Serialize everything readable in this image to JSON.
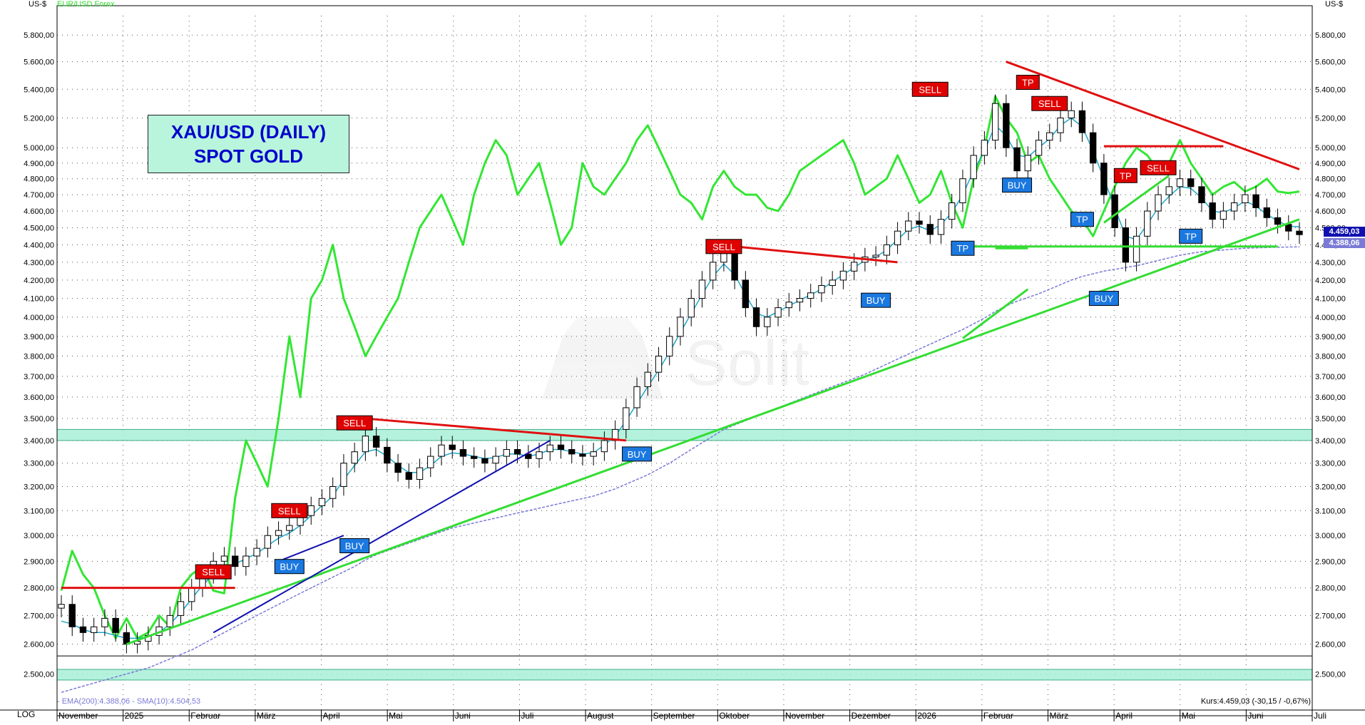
{
  "header": {
    "currency_label_left": "US-$",
    "currency_label_right": "US-$",
    "overlay_legend": "EUR/USD Forex"
  },
  "title_box": {
    "line1": "XAU/USD (DAILY)",
    "line2": "SPOT GOLD"
  },
  "footer": {
    "scale_mode": "LOG",
    "indicator_legend": "- EMA(200):4.388,06 - SMA(10):4.504,53",
    "quote_text": "Kurs:4.459,03 (-30,15 / -0,67%)"
  },
  "price_tags": {
    "last": "4.459,03",
    "ema": "4.388,06"
  },
  "colors": {
    "price_candles": "#000000",
    "overlay_line": "#33e633",
    "sma_line": "#1fa8c8",
    "ema_line": "#7a7ad6",
    "support_line": "#33dd33",
    "resistance_line": "#e01010",
    "blue_trend": "#1010b0",
    "zone_fill": "#a8f0d8",
    "sell_box": "#e00000",
    "buy_box": "#1a78e0",
    "title_fill": "#b8f5dc",
    "title_text": "#0000cc"
  },
  "chart_data": {
    "type": "line",
    "title": "XAU/USD (DAILY) SPOT GOLD",
    "y_scale": "log",
    "ylim": [
      2420,
      5950
    ],
    "y_ticks": [
      2500,
      2600,
      2700,
      2800,
      2900,
      3000,
      3100,
      3200,
      3300,
      3400,
      3500,
      3600,
      3700,
      3800,
      3900,
      4000,
      4100,
      4200,
      4300,
      4400,
      4500,
      4600,
      4700,
      4800,
      4900,
      5000,
      5200,
      5400,
      5600,
      5800
    ],
    "y_tick_labels": [
      "2.500,00",
      "2.600,00",
      "2.700,00",
      "2.800,00",
      "2.900,00",
      "3.000,00",
      "3.100,00",
      "3.200,00",
      "3.300,00",
      "3.400,00",
      "3.500,00",
      "3.600,00",
      "3.700,00",
      "3.800,00",
      "3.900,00",
      "4.000,00",
      "4.100,00",
      "4.200,00",
      "4.300,00",
      "4.400,00",
      "4.500,00",
      "4.600,00",
      "4.700,00",
      "4.800,00",
      "4.900,00",
      "5.000,00",
      "5.200,00",
      "5.400,00",
      "5.600,00",
      "5.800,00"
    ],
    "x_labels": [
      "November",
      "2025",
      "Februar",
      "März",
      "April",
      "Mai",
      "Juni",
      "Juli",
      "August",
      "September",
      "Oktober",
      "November",
      "Dezember",
      "2026",
      "Februar",
      "März",
      "April",
      "Mai",
      "Juni",
      "Juli"
    ],
    "series": [
      {
        "name": "XAU/USD",
        "style": "candles",
        "values": [
          2740,
          2660,
          2640,
          2660,
          2690,
          2640,
          2600,
          2610,
          2630,
          2660,
          2700,
          2750,
          2800,
          2850,
          2900,
          2920,
          2880,
          2920,
          2950,
          3000,
          3020,
          3040,
          3080,
          3120,
          3150,
          3200,
          3300,
          3350,
          3420,
          3370,
          3300,
          3260,
          3230,
          3280,
          3330,
          3380,
          3360,
          3330,
          3320,
          3300,
          3330,
          3360,
          3340,
          3320,
          3350,
          3380,
          3360,
          3340,
          3330,
          3350,
          3400,
          3450,
          3550,
          3650,
          3720,
          3800,
          3900,
          4000,
          4100,
          4200,
          4300,
          4350,
          4200,
          4050,
          3950,
          4000,
          4050,
          4080,
          4100,
          4130,
          4170,
          4200,
          4250,
          4300,
          4330,
          4340,
          4400,
          4480,
          4540,
          4520,
          4460,
          4550,
          4650,
          4800,
          4950,
          5050,
          5300,
          5000,
          4850,
          4950,
          5050,
          5100,
          5200,
          5250,
          5100,
          4900,
          4700,
          4500,
          4300,
          4450,
          4600,
          4700,
          4750,
          4800,
          4750,
          4650,
          4550,
          4600,
          4650,
          4700,
          4620,
          4560,
          4520,
          4480,
          4459
        ]
      },
      {
        "name": "EUR/USD Forex",
        "style": "line",
        "values": [
          2790,
          2940,
          2850,
          2800,
          2700,
          2620,
          2690,
          2620,
          2640,
          2700,
          2660,
          2800,
          2850,
          2880,
          2790,
          2780,
          3150,
          3400,
          3300,
          3200,
          3500,
          3900,
          3600,
          4100,
          4200,
          4400,
          4100,
          3950,
          3800,
          3900,
          4000,
          4100,
          4300,
          4500,
          4600,
          4700,
          4550,
          4400,
          4700,
          4900,
          5050,
          4950,
          4700,
          4800,
          4900,
          4650,
          4400,
          4500,
          4900,
          4750,
          4700,
          4800,
          4900,
          5050,
          5150,
          5000,
          4850,
          4700,
          4650,
          4550,
          4750,
          4850,
          4750,
          4700,
          4700,
          4620,
          4600,
          4700,
          4850,
          4900,
          4950,
          5000,
          5050,
          4900,
          4700,
          4750,
          4800,
          4950,
          4800,
          4650,
          4700,
          4850,
          4650,
          4500,
          4800,
          5000,
          5350,
          5200,
          5100,
          4900,
          4950,
          4800,
          4700,
          4600,
          4550,
          4450,
          4600,
          4750,
          4900,
          5000,
          4950,
          4850,
          4900,
          5050,
          4900,
          4800,
          4700,
          4750,
          4780,
          4720,
          4750,
          4800,
          4720,
          4710,
          4720
        ]
      },
      {
        "name": "SMA(10)",
        "style": "line",
        "values": [
          2680,
          2670,
          2650,
          2640,
          2640,
          2630,
          2620,
          2620,
          2625,
          2640,
          2670,
          2710,
          2760,
          2810,
          2850,
          2880,
          2890,
          2910,
          2930,
          2960,
          2990,
          3010,
          3040,
          3080,
          3120,
          3160,
          3230,
          3290,
          3350,
          3360,
          3330,
          3290,
          3260,
          3260,
          3290,
          3330,
          3345,
          3340,
          3330,
          3320,
          3325,
          3340,
          3340,
          3330,
          3340,
          3360,
          3360,
          3350,
          3340,
          3345,
          3380,
          3420,
          3490,
          3570,
          3650,
          3730,
          3820,
          3920,
          4020,
          4120,
          4220,
          4290,
          4230,
          4120,
          4020,
          4000,
          4030,
          4060,
          4090,
          4120,
          4150,
          4190,
          4230,
          4270,
          4310,
          4330,
          4370,
          4430,
          4490,
          4510,
          4480,
          4520,
          4590,
          4700,
          4850,
          4980,
          5150,
          5080,
          4950,
          4940,
          5000,
          5060,
          5150,
          5200,
          5140,
          4980,
          4800,
          4620,
          4450,
          4430,
          4520,
          4620,
          4690,
          4750,
          4740,
          4680,
          4600,
          4590,
          4620,
          4660,
          4630,
          4580,
          4540,
          4510,
          4505
        ]
      },
      {
        "name": "EMA(200)",
        "style": "dashed",
        "values": [
          2440,
          2450,
          2460,
          2470,
          2480,
          2490,
          2500,
          2510,
          2520,
          2535,
          2550,
          2565,
          2580,
          2600,
          2620,
          2640,
          2660,
          2680,
          2700,
          2720,
          2740,
          2760,
          2780,
          2800,
          2820,
          2840,
          2860,
          2880,
          2905,
          2925,
          2940,
          2955,
          2970,
          2985,
          3000,
          3015,
          3030,
          3040,
          3050,
          3060,
          3070,
          3080,
          3090,
          3100,
          3110,
          3120,
          3130,
          3140,
          3150,
          3160,
          3175,
          3190,
          3210,
          3230,
          3250,
          3275,
          3300,
          3330,
          3360,
          3390,
          3420,
          3450,
          3470,
          3490,
          3510,
          3530,
          3550,
          3570,
          3590,
          3610,
          3630,
          3650,
          3670,
          3690,
          3710,
          3735,
          3760,
          3785,
          3810,
          3835,
          3860,
          3885,
          3910,
          3935,
          3965,
          3995,
          4030,
          4060,
          4085,
          4105,
          4125,
          4150,
          4175,
          4200,
          4220,
          4235,
          4250,
          4260,
          4270,
          4280,
          4295,
          4310,
          4325,
          4340,
          4350,
          4360,
          4365,
          4370,
          4375,
          4380,
          4382,
          4384,
          4386,
          4387,
          4388
        ]
      }
    ],
    "horizontal_zones": [
      {
        "from": 3400,
        "to": 3450
      },
      {
        "from": 2480,
        "to": 2515
      }
    ],
    "trend_lines": [
      {
        "color": "support",
        "from": [
          6,
          2600
        ],
        "to": [
          114,
          4550
        ]
      },
      {
        "color": "support",
        "from": [
          84,
          4390
        ],
        "to": [
          112,
          4390
        ]
      },
      {
        "color": "support",
        "from": [
          83,
          3890
        ],
        "to": [
          89,
          4150
        ]
      },
      {
        "color": "support",
        "from": [
          96,
          4530
        ],
        "to": [
          102,
          4820
        ]
      },
      {
        "color": "support",
        "from": [
          86,
          4380
        ],
        "to": [
          89,
          4380
        ]
      },
      {
        "color": "resistance",
        "from": [
          28,
          3500
        ],
        "to": [
          52,
          3400
        ]
      },
      {
        "color": "resistance",
        "from": [
          62,
          4390
        ],
        "to": [
          77,
          4300
        ]
      },
      {
        "color": "resistance",
        "from": [
          87,
          5600
        ],
        "to": [
          114,
          4860
        ]
      },
      {
        "color": "resistance",
        "from": [
          96,
          5010
        ],
        "to": [
          107,
          5010
        ]
      },
      {
        "color": "resistance",
        "from": [
          0,
          2800
        ],
        "to": [
          16,
          2800
        ]
      },
      {
        "color": "blue",
        "from": [
          20,
          2900
        ],
        "to": [
          26,
          3000
        ]
      },
      {
        "color": "blue",
        "from": [
          14,
          2640
        ],
        "to": [
          45,
          3400
        ]
      }
    ],
    "signals": [
      {
        "label": "SELL",
        "type": "sell",
        "x": 14,
        "y": 2860
      },
      {
        "label": "SELL",
        "type": "sell",
        "x": 21,
        "y": 3100
      },
      {
        "label": "BUY",
        "type": "buy",
        "x": 21,
        "y": 2880
      },
      {
        "label": "SELL",
        "type": "sell",
        "x": 27,
        "y": 3480
      },
      {
        "label": "BUY",
        "type": "buy",
        "x": 27,
        "y": 2960
      },
      {
        "label": "BUY",
        "type": "buy",
        "x": 53,
        "y": 3340
      },
      {
        "label": "SELL",
        "type": "sell",
        "x": 61,
        "y": 4390
      },
      {
        "label": "BUY",
        "type": "buy",
        "x": 75,
        "y": 4090
      },
      {
        "label": "SELL",
        "type": "sell",
        "x": 80,
        "y": 5400
      },
      {
        "label": "TP",
        "type": "buy",
        "x": 83,
        "y": 4380
      },
      {
        "label": "BUY",
        "type": "buy",
        "x": 88,
        "y": 4760
      },
      {
        "label": "TP",
        "type": "sell",
        "x": 89,
        "y": 5450
      },
      {
        "label": "SELL",
        "type": "sell",
        "x": 91,
        "y": 5300
      },
      {
        "label": "TP",
        "type": "buy",
        "x": 94,
        "y": 4550
      },
      {
        "label": "BUY",
        "type": "buy",
        "x": 96,
        "y": 4100
      },
      {
        "label": "TP",
        "type": "sell",
        "x": 98,
        "y": 4820
      },
      {
        "label": "SELL",
        "type": "sell",
        "x": 101,
        "y": 4870
      },
      {
        "label": "TP",
        "type": "buy",
        "x": 104,
        "y": 4450
      }
    ]
  }
}
